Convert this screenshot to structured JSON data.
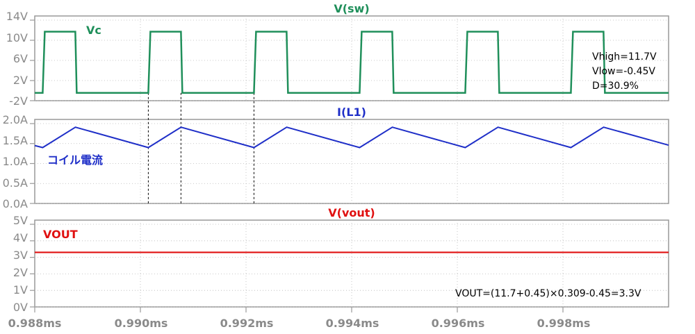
{
  "colors": {
    "frame": "#999999",
    "grid": "#b8b8b8",
    "axis_text": "#8a8a8a",
    "green": "#1f8f5a",
    "blue": "#1f2fc8",
    "red": "#e01010",
    "black": "#000000"
  },
  "x_axis": {
    "tick_labels": [
      "0.988ms",
      "0.990ms",
      "0.992ms",
      "0.994ms",
      "0.996ms",
      "0.998ms"
    ]
  },
  "chart_data": [
    {
      "type": "line",
      "title": "V(sw)",
      "label": "Vc",
      "y_tick_labels": [
        "14V",
        "10V",
        "6V",
        "2V",
        "-2V"
      ],
      "ylim": [
        -2,
        14
      ],
      "xlim_us": [
        988.0,
        1000.0
      ],
      "high_value": 11.7,
      "low_value": -0.45,
      "period_us": 2.0,
      "on_time_us": 0.618,
      "pulse_starts_us": [
        988.15,
        990.15,
        992.15,
        994.15,
        996.15,
        998.15
      ],
      "annotations": [
        "Vhigh=11.7V",
        "Vlow=-0.45V",
        "D=30.9%"
      ]
    },
    {
      "type": "line",
      "title": "I(L1)",
      "label": "コイル電流",
      "y_tick_labels": [
        "2.0A",
        "1.5A",
        "1.0A",
        "0.5A",
        "0.0A"
      ],
      "ylim": [
        0.0,
        2.0
      ],
      "x_us": [
        988.0,
        988.15,
        988.77,
        990.15,
        990.77,
        992.15,
        992.77,
        994.15,
        994.77,
        996.15,
        996.77,
        998.15,
        998.77,
        1000.0
      ],
      "y": [
        1.45,
        1.4,
        1.91,
        1.4,
        1.91,
        1.4,
        1.91,
        1.4,
        1.91,
        1.4,
        1.91,
        1.4,
        1.91,
        1.46
      ]
    },
    {
      "type": "line",
      "title": "V(vout)",
      "label": "VOUT",
      "y_tick_labels": [
        "5V",
        "4V",
        "3V",
        "2V",
        "1V",
        "0V"
      ],
      "ylim": [
        0,
        5
      ],
      "value": 3.3,
      "annotation": "VOUT=(11.7+0.45)×0.309-0.45=3.3V"
    }
  ]
}
